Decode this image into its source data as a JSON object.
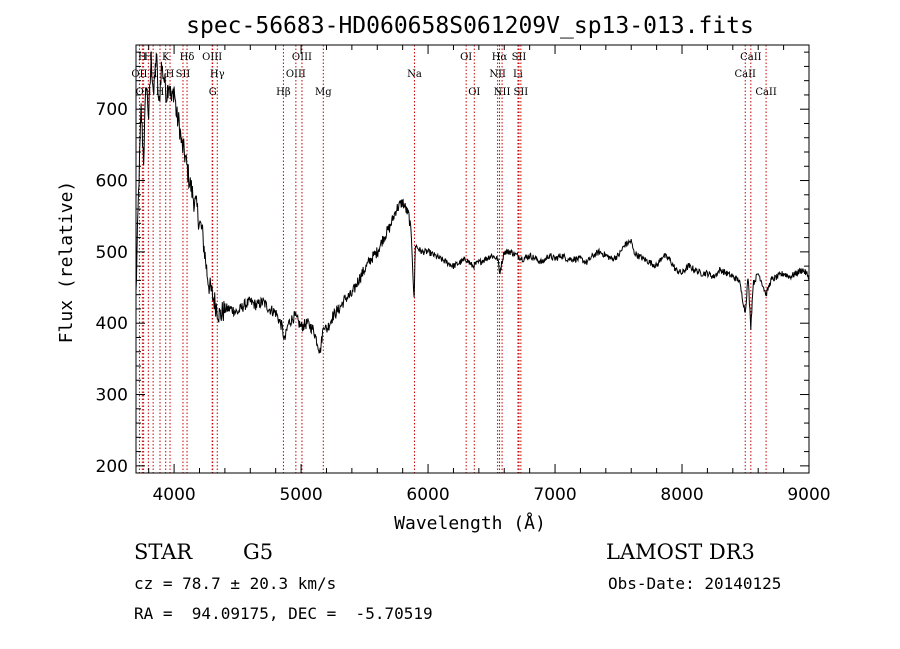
{
  "chart_data": {
    "type": "line",
    "title": "spec-56683-HD060658S061209V_sp13-013.fits",
    "xlabel": "Wavelength (Å)",
    "ylabel": "Flux (relative)",
    "xlim": [
      3700,
      9000
    ],
    "ylim": [
      190,
      790
    ],
    "xticks": [
      4000,
      5000,
      6000,
      7000,
      8000,
      9000
    ],
    "yticks": [
      200,
      300,
      400,
      500,
      600,
      700
    ],
    "grid": false,
    "line_color": "#000000",
    "marker_color": "#cc0000",
    "series": [
      {
        "x": [
          3700,
          3720,
          3740,
          3760,
          3780,
          3800,
          3820,
          3840,
          3860,
          3880,
          3900,
          3920,
          3940,
          3960,
          3980,
          4000,
          4020,
          4040,
          4060,
          4080,
          4100,
          4120,
          4140,
          4160,
          4180,
          4200,
          4220,
          4240,
          4260,
          4280,
          4300,
          4320,
          4340,
          4360,
          4380,
          4400,
          4450,
          4500,
          4550,
          4600,
          4650,
          4700,
          4750,
          4800,
          4850,
          4870,
          4900,
          4950,
          5000,
          5050,
          5100,
          5150,
          5180,
          5200,
          5250,
          5300,
          5350,
          5400,
          5450,
          5500,
          5550,
          5600,
          5650,
          5700,
          5750,
          5800,
          5850,
          5870,
          5890,
          5900,
          5920,
          5950,
          6000,
          6050,
          6100,
          6150,
          6200,
          6250,
          6300,
          6350,
          6400,
          6450,
          6500,
          6550,
          6563,
          6600,
          6650,
          6700,
          6750,
          6800,
          6850,
          6900,
          6950,
          7000,
          7050,
          7100,
          7150,
          7200,
          7250,
          7300,
          7350,
          7400,
          7450,
          7500,
          7550,
          7600,
          7620,
          7650,
          7700,
          7750,
          7800,
          7850,
          7900,
          7950,
          8000,
          8050,
          8100,
          8150,
          8200,
          8250,
          8300,
          8350,
          8400,
          8450,
          8498,
          8520,
          8542,
          8560,
          8600,
          8620,
          8662,
          8700,
          8750,
          8800,
          8850,
          8900,
          8950,
          9000
        ],
        "y": [
          440,
          580,
          700,
          630,
          740,
          690,
          770,
          720,
          780,
          700,
          760,
          745,
          720,
          740,
          710,
          730,
          690,
          680,
          650,
          640,
          620,
          600,
          585,
          570,
          560,
          540,
          530,
          500,
          470,
          450,
          440,
          430,
          420,
          410,
          415,
          420,
          420,
          415,
          425,
          430,
          425,
          430,
          420,
          415,
          395,
          375,
          400,
          410,
          395,
          400,
          390,
          360,
          400,
          390,
          410,
          420,
          435,
          440,
          460,
          475,
          490,
          500,
          520,
          535,
          560,
          570,
          550,
          520,
          430,
          510,
          505,
          500,
          500,
          495,
          490,
          485,
          480,
          485,
          490,
          480,
          485,
          490,
          495,
          490,
          470,
          500,
          500,
          495,
          490,
          495,
          490,
          485,
          495,
          490,
          495,
          490,
          490,
          490,
          485,
          495,
          500,
          495,
          490,
          495,
          510,
          515,
          500,
          495,
          490,
          485,
          480,
          495,
          490,
          475,
          470,
          480,
          475,
          470,
          470,
          465,
          475,
          470,
          465,
          460,
          415,
          465,
          395,
          455,
          470,
          462,
          440,
          460,
          465,
          470,
          465,
          470,
          475,
          465
        ]
      }
    ],
    "lines": [
      {
        "name": "OII",
        "x": 3727,
        "row": 1
      },
      {
        "name": "H",
        "x": 3750,
        "row": 0
      },
      {
        "name": "OII",
        "x": 3760,
        "row": 2
      },
      {
        "name": "H",
        "x": 3797,
        "row": 0
      },
      {
        "name": "H",
        "x": 3835,
        "row": 1
      },
      {
        "name": "H",
        "x": 3889,
        "row": 2
      },
      {
        "name": "K",
        "x": 3934,
        "row": 0
      },
      {
        "name": "H",
        "x": 3968,
        "row": 1
      },
      {
        "name": "SII",
        "x": 4070,
        "row": 1
      },
      {
        "name": "Hδ",
        "x": 4102,
        "row": 0
      },
      {
        "name": "OIII",
        "x": 4300,
        "row": 0
      },
      {
        "name": "Hγ",
        "x": 4340,
        "row": 1
      },
      {
        "name": "G",
        "x": 4304,
        "row": 2
      },
      {
        "name": "Hβ",
        "x": 4861,
        "row": 2
      },
      {
        "name": "OIII",
        "x": 4959,
        "row": 1
      },
      {
        "name": "OIII",
        "x": 5007,
        "row": 0
      },
      {
        "name": "Mg",
        "x": 5175,
        "row": 2
      },
      {
        "name": "Na",
        "x": 5893,
        "row": 1
      },
      {
        "name": "OI",
        "x": 6300,
        "row": 0
      },
      {
        "name": "OI",
        "x": 6364,
        "row": 2
      },
      {
        "name": "NII",
        "x": 6548,
        "row": 1
      },
      {
        "name": "Hα",
        "x": 6563,
        "row": 0
      },
      {
        "name": "NII",
        "x": 6583,
        "row": 2
      },
      {
        "name": "SII",
        "x": 6716,
        "row": 0
      },
      {
        "name": "Li",
        "x": 6708,
        "row": 1
      },
      {
        "name": "SII",
        "x": 6731,
        "row": 2
      },
      {
        "name": "CaII",
        "x": 8498,
        "row": 1
      },
      {
        "name": "CaII",
        "x": 8542,
        "row": 0
      },
      {
        "name": "CaII",
        "x": 8662,
        "row": 2
      }
    ]
  },
  "info": {
    "object_class": "STAR",
    "subclass": "G5",
    "survey": "LAMOST DR3",
    "redshift": "cz = 78.7 ± 20.3 km/s",
    "obs_date": "Obs-Date: 20140125",
    "coords": "RA =  94.09175, DEC =  -5.70519"
  }
}
